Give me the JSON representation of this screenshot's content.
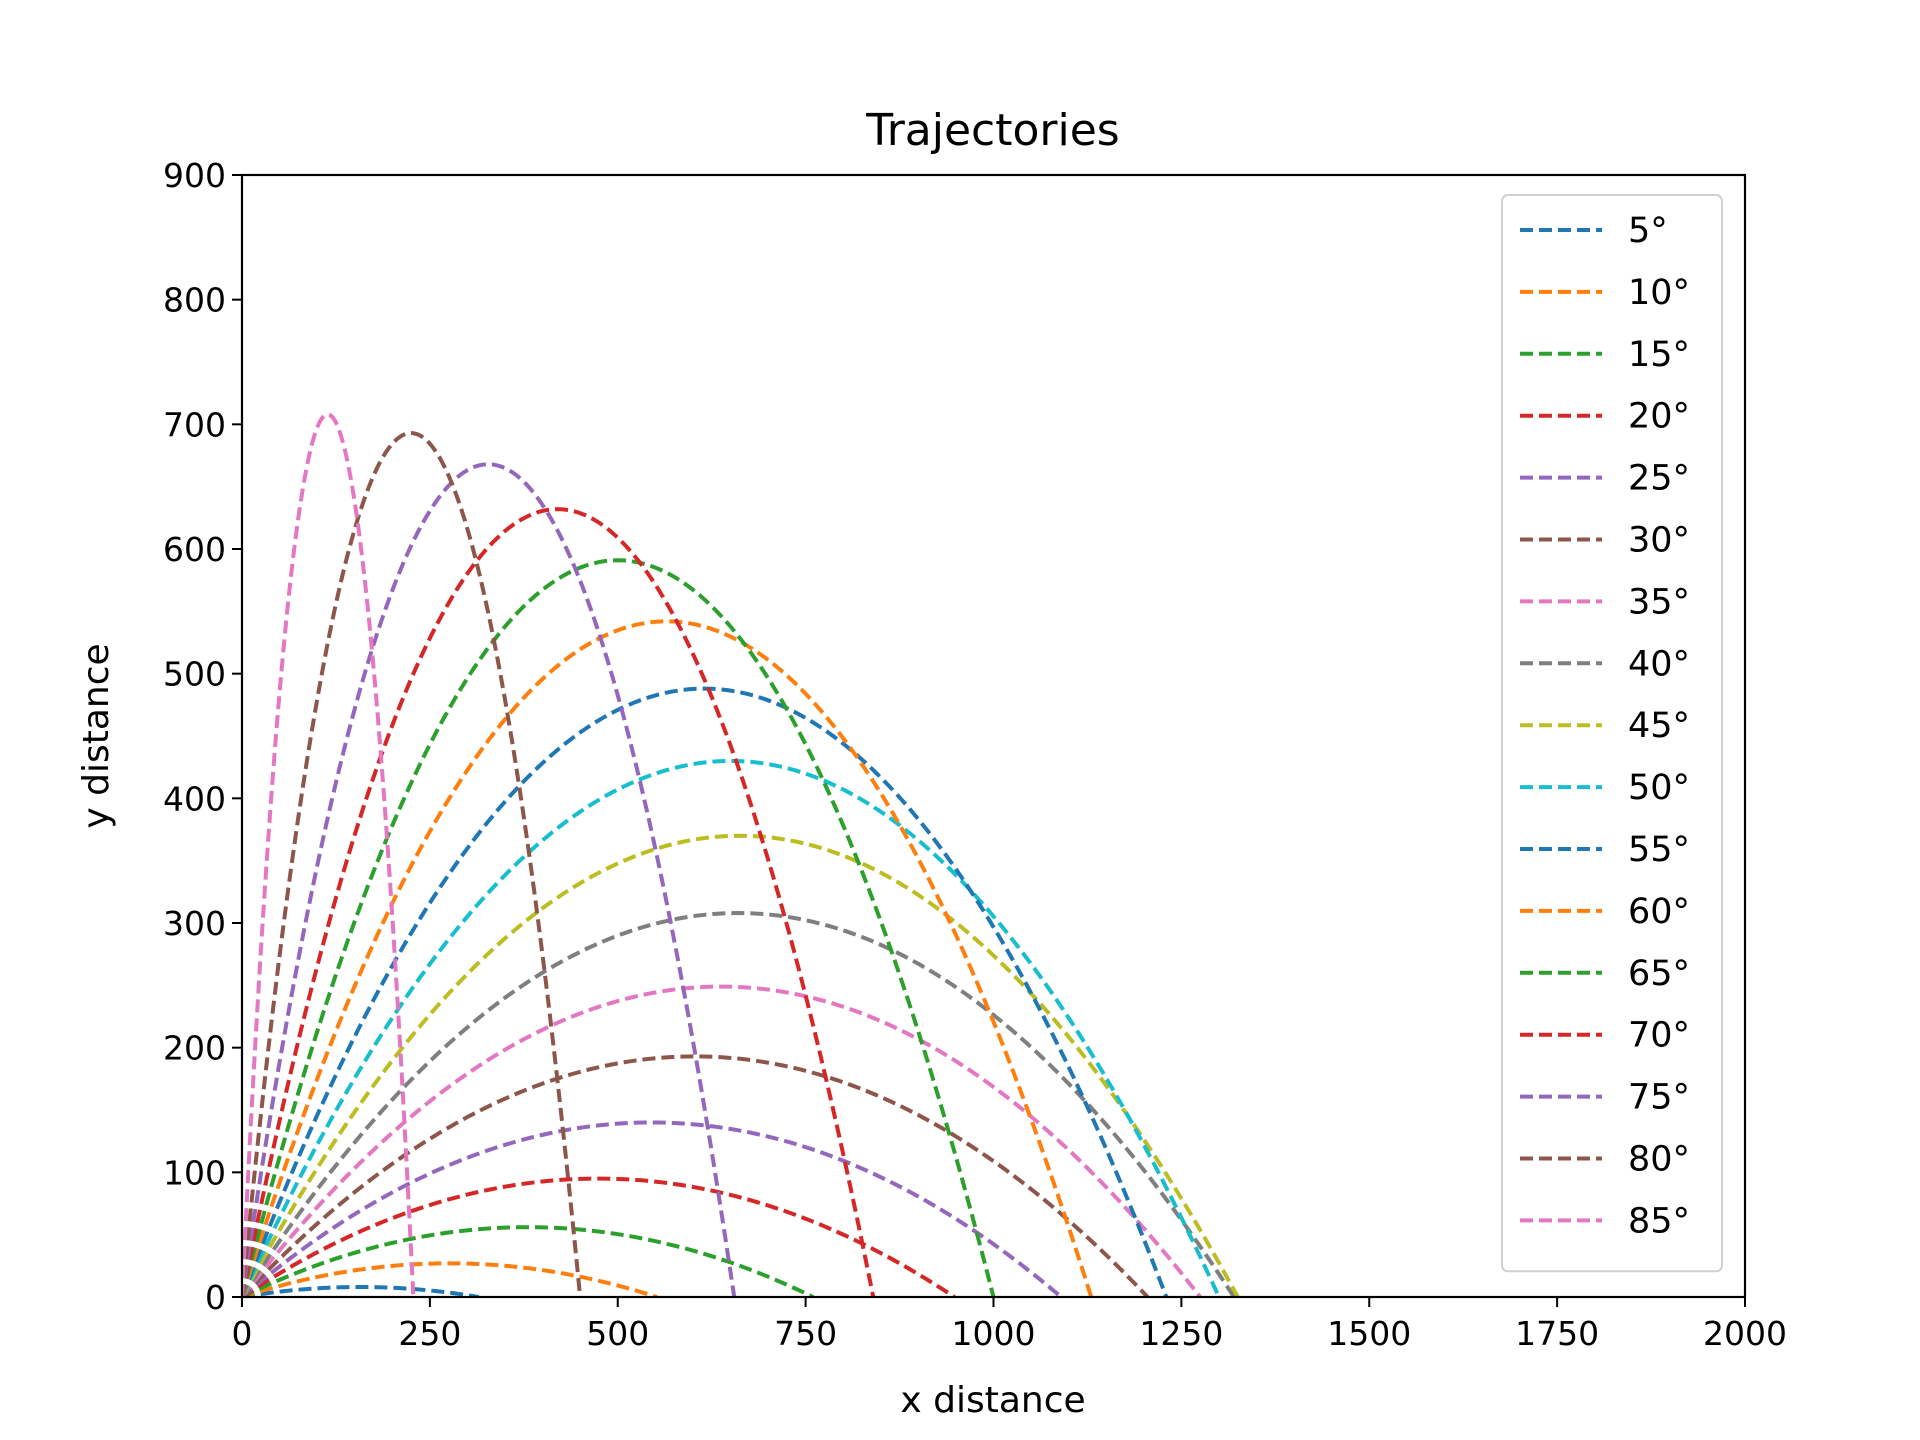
{
  "chart_data": {
    "type": "line",
    "title": "Trajectories",
    "xlabel": "x distance",
    "ylabel": "y distance",
    "xlim": [
      0,
      2000
    ],
    "ylim": [
      0,
      900
    ],
    "xticks": [
      0,
      250,
      500,
      750,
      1000,
      1250,
      1500,
      1750,
      2000
    ],
    "yticks": [
      0,
      100,
      200,
      300,
      400,
      500,
      600,
      700,
      800,
      900
    ],
    "grid": false,
    "legend_position": "top-right",
    "line_style": "dashed",
    "series": [
      {
        "name": "5°",
        "color": "#1f77b4",
        "range": 315,
        "apex": [
          158,
          8
        ]
      },
      {
        "name": "10°",
        "color": "#ff7f0e",
        "range": 552,
        "apex": [
          276,
          27
        ]
      },
      {
        "name": "15°",
        "color": "#2ca02c",
        "range": 760,
        "apex": [
          380,
          56
        ]
      },
      {
        "name": "20°",
        "color": "#d62728",
        "range": 948,
        "apex": [
          474,
          95
        ]
      },
      {
        "name": "25°",
        "color": "#9467bd",
        "range": 1090,
        "apex": [
          545,
          140
        ]
      },
      {
        "name": "30°",
        "color": "#8c564b",
        "range": 1205,
        "apex": [
          602,
          193
        ]
      },
      {
        "name": "35°",
        "color": "#e377c2",
        "range": 1275,
        "apex": [
          638,
          249
        ]
      },
      {
        "name": "40°",
        "color": "#7f7f7f",
        "range": 1320,
        "apex": [
          660,
          308
        ]
      },
      {
        "name": "45°",
        "color": "#bcbd22",
        "range": 1325,
        "apex": [
          663,
          370
        ]
      },
      {
        "name": "50°",
        "color": "#17becf",
        "range": 1300,
        "apex": [
          650,
          430
        ]
      },
      {
        "name": "55°",
        "color": "#1f77b4",
        "range": 1230,
        "apex": [
          615,
          488
        ]
      },
      {
        "name": "60°",
        "color": "#ff7f0e",
        "range": 1130,
        "apex": [
          565,
          542
        ]
      },
      {
        "name": "65°",
        "color": "#2ca02c",
        "range": 1000,
        "apex": [
          500,
          591
        ]
      },
      {
        "name": "70°",
        "color": "#d62728",
        "range": 840,
        "apex": [
          420,
          632
        ]
      },
      {
        "name": "75°",
        "color": "#9467bd",
        "range": 655,
        "apex": [
          327,
          668
        ]
      },
      {
        "name": "80°",
        "color": "#8c564b",
        "range": 450,
        "apex": [
          225,
          693
        ]
      },
      {
        "name": "85°",
        "color": "#e377c2",
        "range": 228,
        "apex": [
          114,
          708
        ]
      }
    ]
  }
}
